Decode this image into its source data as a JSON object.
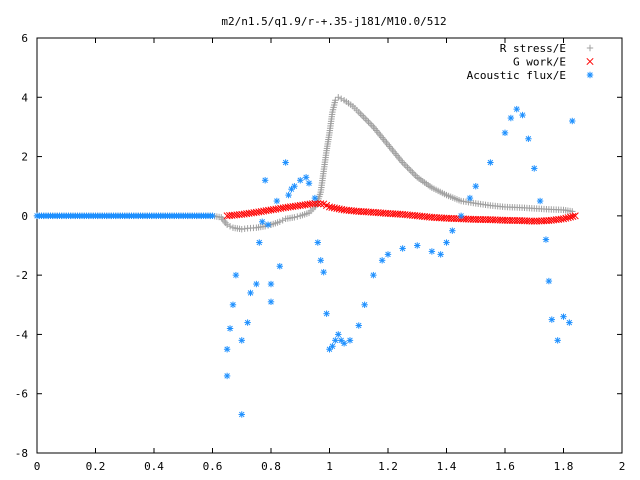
{
  "chart_data": {
    "type": "scatter",
    "title": "m2/n1.5/q1.9/r-+.35-j181/M10.0/512",
    "xlabel": "",
    "ylabel": "",
    "xlim": [
      0,
      2
    ],
    "ylim": [
      -8,
      6
    ],
    "x_ticks": [
      "0",
      "0.2",
      "0.4",
      "0.6",
      "0.8",
      "1",
      "1.2",
      "1.4",
      "1.6",
      "1.8",
      "2"
    ],
    "y_ticks": [
      "6",
      "4",
      "2",
      "0",
      "-2",
      "-4",
      "-6",
      "-8"
    ],
    "grid": false,
    "legend_position": "top-right",
    "series": [
      {
        "name": "R stress/E",
        "marker": "+",
        "color": "#a0a0a0",
        "x": [
          0.0,
          0.1,
          0.2,
          0.3,
          0.4,
          0.5,
          0.6,
          0.63,
          0.65,
          0.67,
          0.7,
          0.72,
          0.75,
          0.78,
          0.8,
          0.83,
          0.85,
          0.88,
          0.9,
          0.93,
          0.95,
          0.96,
          0.97,
          0.98,
          0.99,
          1.0,
          1.01,
          1.02,
          1.03,
          1.05,
          1.08,
          1.1,
          1.15,
          1.2,
          1.25,
          1.3,
          1.35,
          1.4,
          1.45,
          1.5,
          1.55,
          1.6,
          1.65,
          1.7,
          1.75,
          1.8,
          1.83
        ],
        "y": [
          0.0,
          0.0,
          0.0,
          0.0,
          0.0,
          0.0,
          0.0,
          -0.05,
          -0.3,
          -0.4,
          -0.45,
          -0.42,
          -0.4,
          -0.35,
          -0.3,
          -0.2,
          -0.1,
          -0.05,
          0.0,
          0.1,
          0.3,
          0.5,
          0.8,
          1.5,
          2.2,
          2.8,
          3.5,
          3.9,
          4.0,
          3.9,
          3.7,
          3.5,
          3.0,
          2.4,
          1.8,
          1.3,
          0.95,
          0.7,
          0.5,
          0.42,
          0.35,
          0.3,
          0.28,
          0.25,
          0.22,
          0.2,
          0.15
        ]
      },
      {
        "name": "G work/E",
        "marker": "x",
        "color": "#ff0000",
        "x": [
          0.65,
          0.7,
          0.75,
          0.8,
          0.85,
          0.9,
          0.95,
          0.98,
          1.0,
          1.05,
          1.1,
          1.15,
          1.2,
          1.25,
          1.3,
          1.35,
          1.4,
          1.45,
          1.5,
          1.55,
          1.6,
          1.65,
          1.7,
          1.75,
          1.8,
          1.84
        ],
        "y": [
          0.0,
          0.05,
          0.12,
          0.2,
          0.28,
          0.35,
          0.42,
          0.4,
          0.3,
          0.2,
          0.15,
          0.12,
          0.08,
          0.05,
          0.0,
          -0.05,
          -0.08,
          -0.1,
          -0.12,
          -0.13,
          -0.15,
          -0.16,
          -0.18,
          -0.16,
          -0.1,
          0.0
        ]
      },
      {
        "name": "Acoustic flux/E",
        "marker": "*",
        "color": "#1e90ff",
        "x": [
          0.0,
          0.1,
          0.2,
          0.3,
          0.4,
          0.5,
          0.6,
          0.65,
          0.65,
          0.66,
          0.67,
          0.68,
          0.7,
          0.7,
          0.72,
          0.73,
          0.75,
          0.76,
          0.77,
          0.78,
          0.79,
          0.8,
          0.8,
          0.82,
          0.83,
          0.85,
          0.86,
          0.87,
          0.88,
          0.9,
          0.92,
          0.93,
          0.95,
          0.96,
          0.97,
          0.98,
          0.99,
          1.0,
          1.01,
          1.02,
          1.03,
          1.04,
          1.05,
          1.07,
          1.1,
          1.12,
          1.15,
          1.18,
          1.2,
          1.25,
          1.3,
          1.35,
          1.38,
          1.4,
          1.42,
          1.45,
          1.48,
          1.5,
          1.55,
          1.6,
          1.62,
          1.64,
          1.66,
          1.68,
          1.7,
          1.72,
          1.74,
          1.75,
          1.76,
          1.78,
          1.8,
          1.82,
          1.83
        ],
        "y": [
          0.0,
          0.0,
          0.0,
          0.0,
          0.0,
          0.0,
          0.0,
          -5.4,
          -4.5,
          -3.8,
          -3.0,
          -2.0,
          -4.2,
          -6.7,
          -3.6,
          -2.6,
          -2.3,
          -0.9,
          -0.2,
          1.2,
          -0.3,
          -2.3,
          -2.9,
          0.5,
          -1.7,
          1.8,
          0.7,
          0.9,
          1.0,
          1.2,
          1.3,
          1.1,
          0.6,
          -0.9,
          -1.5,
          -1.9,
          -3.3,
          -4.5,
          -4.4,
          -4.2,
          -4.0,
          -4.2,
          -4.3,
          -4.2,
          -3.7,
          -3.0,
          -2.0,
          -1.5,
          -1.3,
          -1.1,
          -1.0,
          -1.2,
          -1.3,
          -0.9,
          -0.5,
          0.0,
          0.6,
          1.0,
          1.8,
          2.8,
          3.3,
          3.6,
          3.4,
          2.6,
          1.6,
          0.5,
          -0.8,
          -2.2,
          -3.5,
          -4.2,
          -3.4,
          -3.6,
          3.2
        ]
      }
    ]
  }
}
